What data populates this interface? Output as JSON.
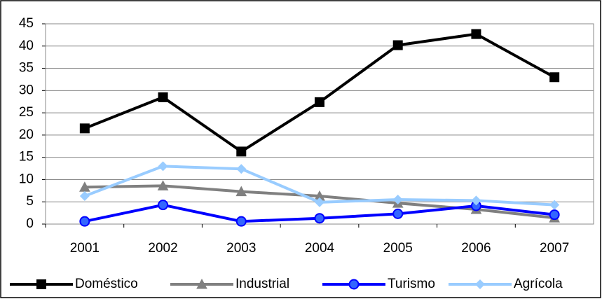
{
  "chart_data": {
    "type": "line",
    "categories": [
      "2001",
      "2002",
      "2003",
      "2004",
      "2005",
      "2006",
      "2007"
    ],
    "series": [
      {
        "name": "Doméstico",
        "color": "#000000",
        "marker": "square",
        "values": [
          21.5,
          28.5,
          16.3,
          27.4,
          40.2,
          42.7,
          33.0
        ]
      },
      {
        "name": "Industrial",
        "color": "#808080",
        "marker": "triangle",
        "values": [
          8.3,
          8.6,
          7.3,
          6.3,
          4.7,
          3.3,
          1.4
        ]
      },
      {
        "name": "Turismo",
        "color": "#0000ff",
        "marker": "circle",
        "values": [
          0.6,
          4.3,
          0.6,
          1.3,
          2.3,
          4.1,
          2.1
        ]
      },
      {
        "name": "Agrícola",
        "color": "#99ccff",
        "marker": "diamond",
        "values": [
          6.3,
          13.0,
          12.4,
          4.9,
          5.5,
          5.3,
          4.3
        ]
      }
    ],
    "ylim": [
      0,
      45
    ],
    "yticks": [
      0,
      5,
      10,
      15,
      20,
      25,
      30,
      35,
      40,
      45
    ],
    "grid": true,
    "legend": "bottom"
  }
}
